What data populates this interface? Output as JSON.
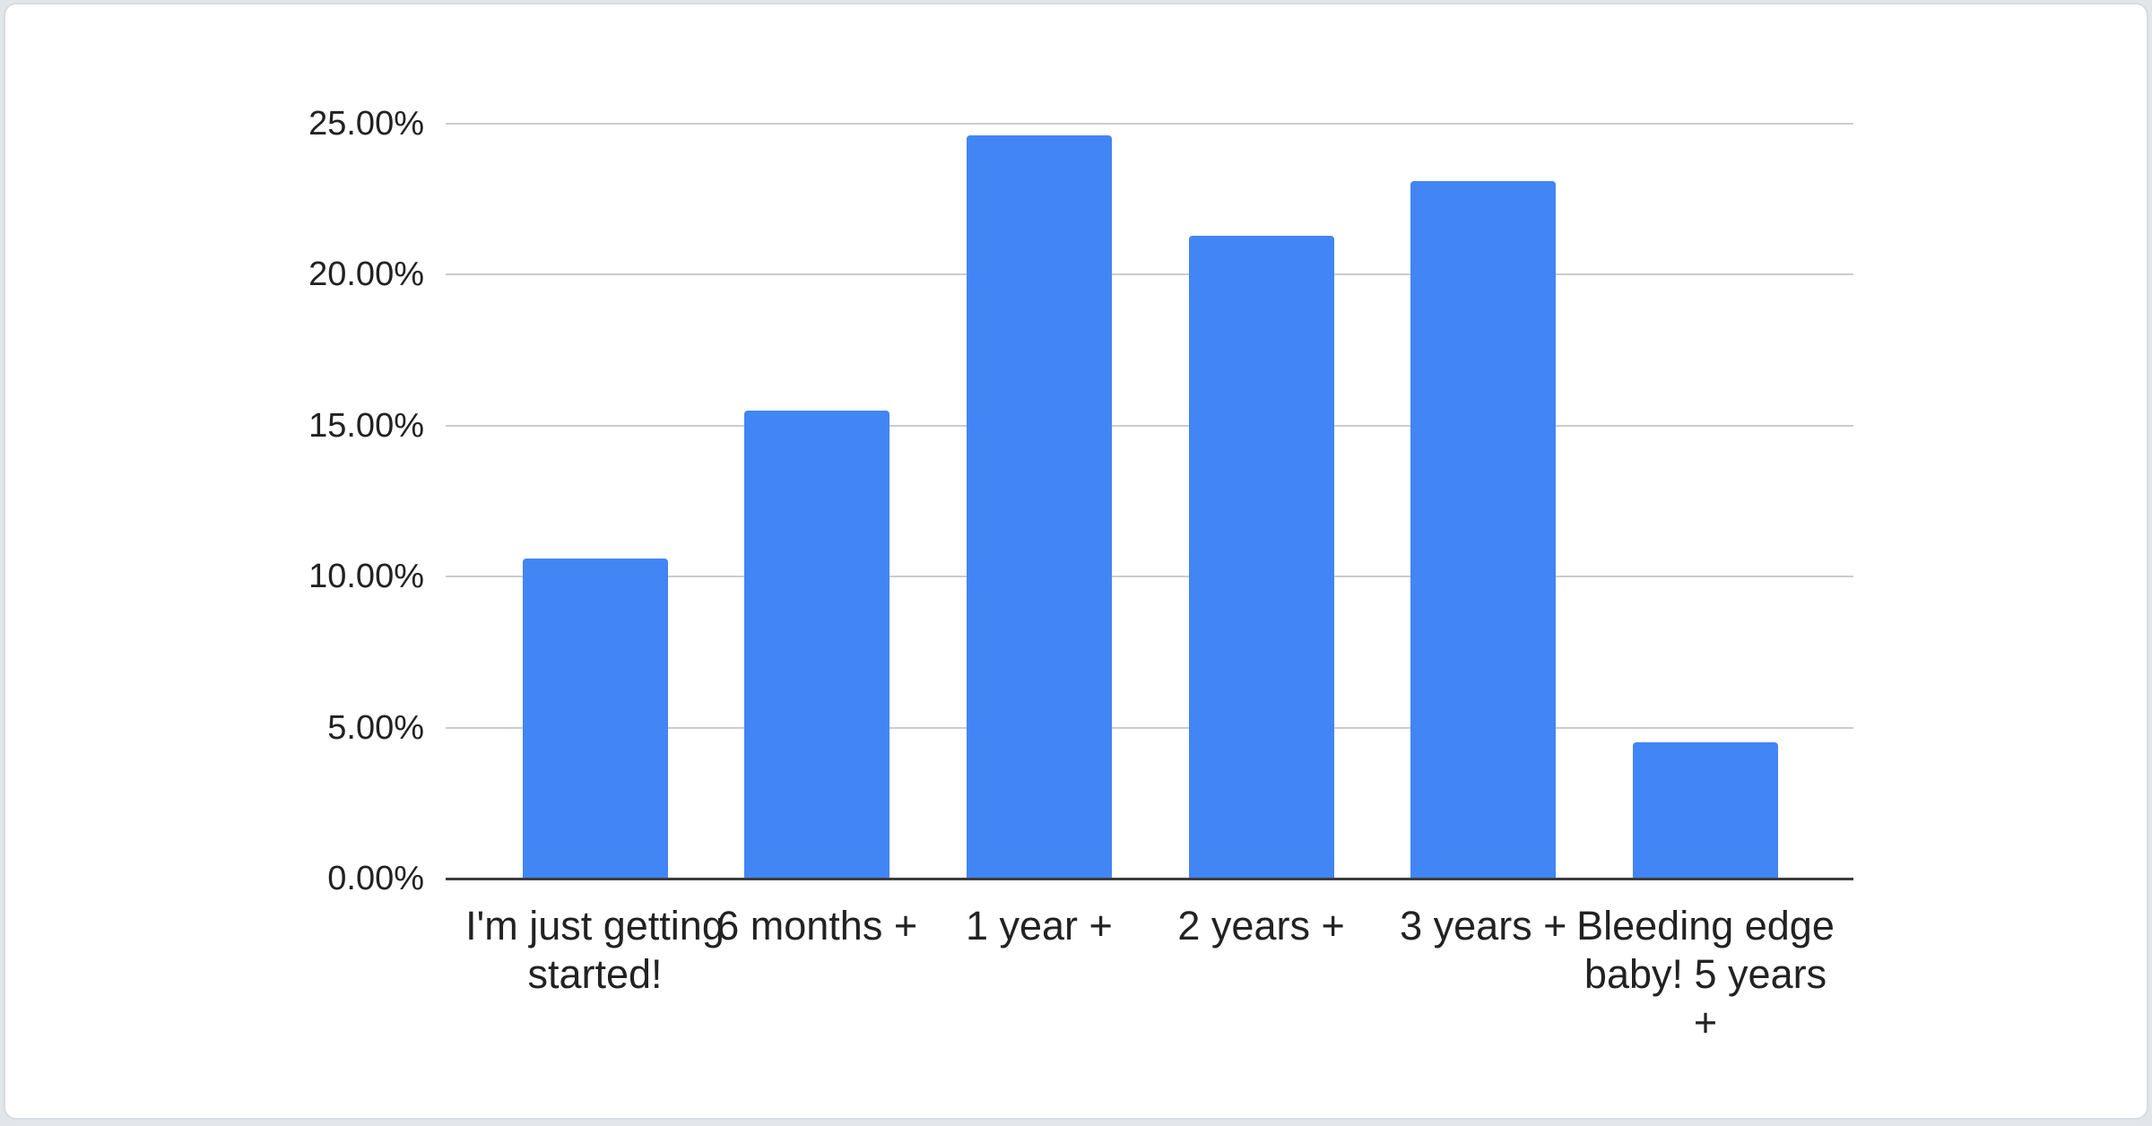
{
  "page": {
    "background_color": "#e2e5e9",
    "card_background": "#ffffff",
    "card_border_color": "#d8dbdf"
  },
  "chart_data": {
    "type": "bar",
    "title": "",
    "xlabel": "",
    "ylabel": "",
    "categories": [
      "I'm just getting started!",
      "6 months +",
      "1 year +",
      "2 years +",
      "3 years +",
      "Bleeding edge baby! 5 years +"
    ],
    "category_display_lines": [
      [
        "I'm just",
        "getting",
        "started!"
      ],
      [
        "6 months +"
      ],
      [
        "1 year +"
      ],
      [
        "2 years +"
      ],
      [
        "3 years +"
      ],
      [
        "Bleeding",
        "edge baby!",
        "5 years +"
      ]
    ],
    "values": [
      10.6,
      15.5,
      24.6,
      21.3,
      23.1,
      4.5
    ],
    "value_unit": "%",
    "ylim": [
      0,
      25
    ],
    "yticks": [
      0,
      5,
      10,
      15,
      20,
      25
    ],
    "ytick_labels": [
      "0.00%",
      "5.00%",
      "10.00%",
      "15.00%",
      "20.00%",
      "25.00%"
    ],
    "grid": true,
    "legend_position": "none",
    "bar_color": "#4285f4",
    "gridline_color": "#cccccc",
    "axis_line_color": "#3c3c3c",
    "text_color": "#222222"
  }
}
